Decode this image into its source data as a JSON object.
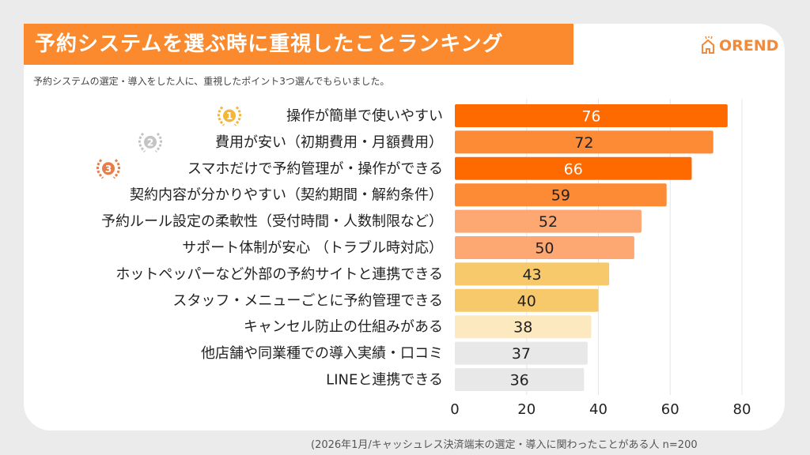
{
  "header": {
    "title": "予約システムを選ぶ時に重視したことランキング",
    "subtitle": "予約システムの選定・導入をした人に、重視したポイント3つ選んでもらいました。",
    "logo_text": "OREND",
    "footnote": "(2026年1月/キャッシュレス決済端末の選定・導入に関わったことがある人  n=200"
  },
  "chart_data": {
    "type": "bar",
    "orientation": "horizontal",
    "categories": [
      "操作が簡単で使いやすい",
      "費用が安い（初期費用・月額費用）",
      "スマホだけで予約管理が・操作ができる",
      "契約内容が分かりやすい（契約期間・解約条件）",
      "予約ルール設定の柔軟性（受付時間・人数制限など）",
      "サポート体制が安心 （トラブル時対応）",
      "ホットペッパーなど外部の予約サイトと連携できる",
      "スタッフ・メニューごとに予約管理できる",
      "キャンセル防止の仕組みがある",
      "他店舗や同業種での導入実績・口コミ",
      "LINEと連携できる"
    ],
    "values": [
      76,
      72,
      66,
      59,
      52,
      50,
      43,
      40,
      38,
      37,
      36
    ],
    "colors": [
      "#ff6a00",
      "#fd8a35",
      "#ff6a00",
      "#fd8a35",
      "#fda873",
      "#fda873",
      "#f7c96a",
      "#f7c96a",
      "#fde9bf",
      "#e8e8e8",
      "#e8e8e8"
    ],
    "label_colors": [
      "#ffffff",
      "#222222",
      "#ffffff",
      "#222222",
      "#222222",
      "#222222",
      "#222222",
      "#222222",
      "#222222",
      "#222222",
      "#222222"
    ],
    "rank_badges": [
      {
        "rank": "1",
        "color": "#f2b63a"
      },
      {
        "rank": "2",
        "color": "#c4c4c4"
      },
      {
        "rank": "3",
        "color": "#e57e4a"
      }
    ],
    "xlim": [
      0,
      80
    ],
    "xticks": [
      "0",
      "20",
      "40",
      "60",
      "80"
    ],
    "grid": true
  }
}
